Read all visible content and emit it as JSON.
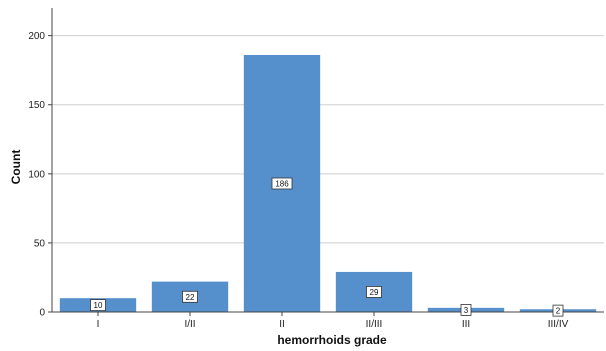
{
  "chart_data": {
    "type": "bar",
    "title": "",
    "xlabel": "hemorrhoids grade",
    "ylabel": "Count",
    "categories": [
      "I",
      "I/II",
      "II",
      "II/III",
      "III",
      "III/IV"
    ],
    "values": [
      10,
      22,
      186,
      29,
      3,
      2
    ],
    "data_labels": [
      "10",
      "22",
      "186",
      "29",
      "3",
      "2"
    ],
    "ylim": [
      0,
      220
    ],
    "yticks": [
      0,
      50,
      100,
      150,
      200
    ],
    "ytick_labels": [
      "0",
      "50",
      "100",
      "150",
      "200"
    ],
    "grid": true,
    "legend": "none",
    "colors": {
      "bar": "#5590cc",
      "grid": "#cfcfcf",
      "axis": "#444444"
    }
  }
}
